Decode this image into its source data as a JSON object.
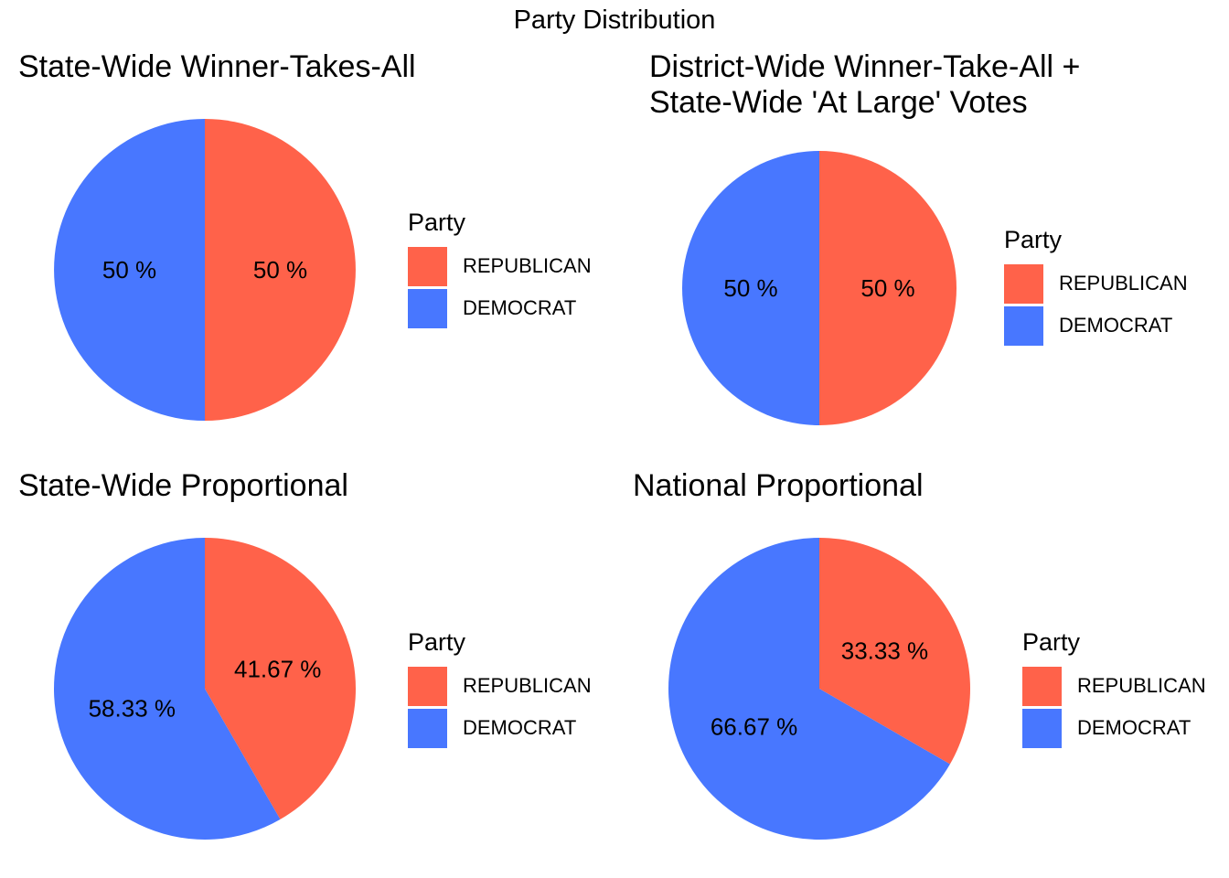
{
  "title": "Party Distribution",
  "legend_title": "Party",
  "colors": {
    "REPUBLICAN": "#FF624A",
    "DEMOCRAT": "#4877FF"
  },
  "chart_data": [
    {
      "type": "pie",
      "title": "State-Wide Winner-Takes-All",
      "title_lines": [
        "State-Wide Winner-Takes-All"
      ],
      "legend_title": "Party",
      "series": [
        {
          "name": "REPUBLICAN",
          "value": 50,
          "label": "50 %"
        },
        {
          "name": "DEMOCRAT",
          "value": 50,
          "label": "50 %"
        }
      ]
    },
    {
      "type": "pie",
      "title": "District-Wide Winner-Take-All + State-Wide 'At Large' Votes",
      "title_lines": [
        "District-Wide Winner-Take-All +",
        "State-Wide 'At Large' Votes"
      ],
      "legend_title": "Party",
      "series": [
        {
          "name": "REPUBLICAN",
          "value": 50,
          "label": "50 %"
        },
        {
          "name": "DEMOCRAT",
          "value": 50,
          "label": "50 %"
        }
      ]
    },
    {
      "type": "pie",
      "title": "State-Wide Proportional",
      "title_lines": [
        "State-Wide Proportional"
      ],
      "legend_title": "Party",
      "series": [
        {
          "name": "REPUBLICAN",
          "value": 41.67,
          "label": "41.67 %"
        },
        {
          "name": "DEMOCRAT",
          "value": 58.33,
          "label": "58.33 %"
        }
      ]
    },
    {
      "type": "pie",
      "title": "National Proportional",
      "title_lines": [
        "National Proportional"
      ],
      "legend_title": "Party",
      "series": [
        {
          "name": "REPUBLICAN",
          "value": 33.33,
          "label": "33.33 %"
        },
        {
          "name": "DEMOCRAT",
          "value": 66.67,
          "label": "66.67 %"
        }
      ]
    }
  ]
}
